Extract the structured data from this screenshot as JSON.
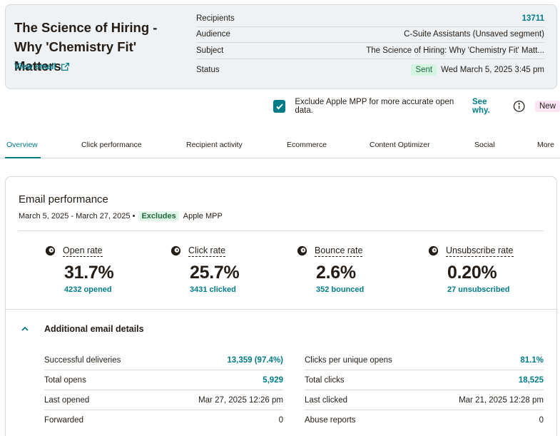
{
  "campaign": {
    "title": "The Science of Hiring - Why 'Chemistry Fit' Matters",
    "view_email_label": "View email"
  },
  "meta": {
    "recipients_label": "Recipients",
    "recipients_value": "13711",
    "audience_label": "Audience",
    "audience_value": "C-Suite Assistants (Unsaved segment)",
    "subject_label": "Subject",
    "subject_value": "The Science of Hiring: Why 'Chemistry Fit' Matt...",
    "status_label": "Status",
    "status_badge": "Sent",
    "status_date": "Wed March 5, 2025 3:45 pm"
  },
  "mpp": {
    "label": "Exclude Apple MPP for more accurate open data.",
    "see_why": "See why.",
    "new_badge": "New"
  },
  "tabs": [
    {
      "label": "Overview"
    },
    {
      "label": "Click performance"
    },
    {
      "label": "Recipient activity"
    },
    {
      "label": "Ecommerce"
    },
    {
      "label": "Content Optimizer"
    },
    {
      "label": "Social"
    },
    {
      "label": "More"
    }
  ],
  "performance": {
    "title": "Email performance",
    "date_range": "March 5, 2025 - March 27, 2025 •",
    "excludes": "Excludes",
    "excludes_what": "Apple MPP",
    "stats": [
      {
        "label": "Open rate",
        "value": "31.7%",
        "sub": "4232 opened"
      },
      {
        "label": "Click rate",
        "value": "25.7%",
        "sub": "3431 clicked"
      },
      {
        "label": "Bounce rate",
        "value": "2.6%",
        "sub": "352 bounced"
      },
      {
        "label": "Unsubscribe rate",
        "value": "0.20%",
        "sub": "27 unsubscribed"
      }
    ]
  },
  "details": {
    "title": "Additional email details",
    "left": [
      {
        "label": "Successful deliveries",
        "value": "13,359 (97.4%)"
      },
      {
        "label": "Total opens",
        "value": "5,929"
      },
      {
        "label": "Last opened",
        "value": "Mar 27, 2025 12:26 pm"
      },
      {
        "label": "Forwarded",
        "value": "0"
      }
    ],
    "right": [
      {
        "label": "Clicks per unique opens",
        "value": "81.1%"
      },
      {
        "label": "Total clicks",
        "value": "18,525"
      },
      {
        "label": "Last clicked",
        "value": "Mar 21, 2025 12:28 pm"
      },
      {
        "label": "Abuse reports",
        "value": "0"
      }
    ]
  },
  "colors": {
    "accent": "#007c89",
    "header_bg": "#eef2f5",
    "border": "#d3d9de"
  }
}
